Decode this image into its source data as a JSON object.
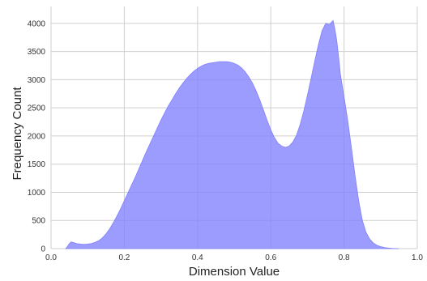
{
  "chart_data": {
    "type": "area",
    "title": "",
    "xlabel": "Dimension Value",
    "ylabel": "Frequency Count",
    "xlim": [
      0.0,
      1.0
    ],
    "ylim": [
      0,
      4300
    ],
    "xticks": [
      0.0,
      0.2,
      0.4,
      0.6,
      0.8,
      1.0
    ],
    "xtick_labels": [
      "0.0",
      "0.2",
      "0.4",
      "0.6",
      "0.8",
      "1.0"
    ],
    "yticks": [
      0,
      500,
      1000,
      1500,
      2000,
      2500,
      3000,
      3500,
      4000
    ],
    "ytick_labels": [
      "0",
      "500",
      "1000",
      "1500",
      "2000",
      "2500",
      "3000",
      "3500",
      "4000"
    ],
    "grid": true,
    "fill_color": "#8080ff",
    "series": [
      {
        "x": [
          0.04,
          0.045,
          0.05,
          0.055,
          0.06,
          0.07,
          0.08,
          0.09,
          0.1,
          0.11,
          0.12,
          0.13,
          0.14,
          0.15,
          0.16,
          0.17,
          0.18,
          0.19,
          0.2,
          0.21,
          0.22,
          0.23,
          0.24,
          0.25,
          0.26,
          0.27,
          0.28,
          0.29,
          0.3,
          0.31,
          0.32,
          0.33,
          0.34,
          0.35,
          0.36,
          0.37,
          0.38,
          0.39,
          0.4,
          0.41,
          0.42,
          0.43,
          0.44,
          0.45,
          0.46,
          0.47,
          0.48,
          0.49,
          0.5,
          0.51,
          0.52,
          0.53,
          0.54,
          0.55,
          0.56,
          0.57,
          0.58,
          0.59,
          0.6,
          0.61,
          0.62,
          0.63,
          0.64,
          0.65,
          0.66,
          0.67,
          0.68,
          0.69,
          0.7,
          0.71,
          0.72,
          0.73,
          0.74,
          0.75,
          0.76,
          0.77,
          0.775,
          0.78,
          0.785,
          0.79,
          0.8,
          0.81,
          0.82,
          0.83,
          0.84,
          0.85,
          0.86,
          0.87,
          0.88,
          0.89,
          0.9,
          0.91,
          0.92,
          0.93,
          0.94,
          0.95
        ],
        "y": [
          0,
          40,
          90,
          120,
          110,
          90,
          80,
          75,
          80,
          90,
          110,
          140,
          190,
          260,
          350,
          460,
          580,
          710,
          850,
          990,
          1130,
          1270,
          1420,
          1570,
          1720,
          1860,
          2000,
          2140,
          2280,
          2410,
          2530,
          2640,
          2750,
          2850,
          2940,
          3020,
          3090,
          3150,
          3200,
          3240,
          3270,
          3290,
          3300,
          3310,
          3320,
          3320,
          3320,
          3310,
          3290,
          3260,
          3210,
          3140,
          3050,
          2940,
          2800,
          2640,
          2460,
          2280,
          2110,
          1970,
          1870,
          1820,
          1800,
          1820,
          1890,
          2010,
          2200,
          2440,
          2720,
          3020,
          3330,
          3620,
          3870,
          4000,
          3980,
          4050,
          3900,
          3700,
          3420,
          3100,
          2700,
          2280,
          1800,
          1300,
          850,
          500,
          290,
          170,
          100,
          60,
          35,
          20,
          10,
          5,
          2,
          0
        ]
      }
    ]
  }
}
